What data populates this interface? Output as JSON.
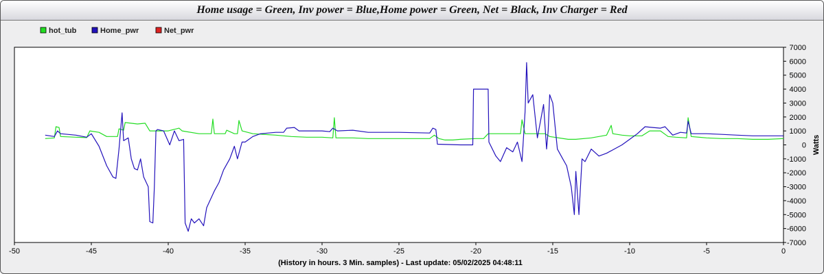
{
  "title": "Home usage = Green, Inv power = Blue,Home power = Green, Net = Black, Inv Charger = Red",
  "chart_data": {
    "type": "line",
    "title": "Home usage = Green, Inv power = Blue,Home power = Green, Net = Black, Inv Charger = Red",
    "xlabel": "(History in hours. 3 Min. samples) - Last update: 05/02/2025 04:48:11",
    "ylabel": "Watts",
    "xlim": [
      -50,
      0
    ],
    "ylim": [
      -7000,
      7000
    ],
    "x_ticks": [
      "-50",
      "-45",
      "-40",
      "-35",
      "-30",
      "-25",
      "-20",
      "-15",
      "-10",
      "-5",
      "0"
    ],
    "y_ticks": [
      "7000",
      "6000",
      "5000",
      "4000",
      "3000",
      "2000",
      "1000",
      "0",
      "-1000",
      "-2000",
      "-3000",
      "-4000",
      "-5000",
      "-6000",
      "-7000"
    ],
    "grid": false,
    "legend_position": "top-left",
    "series": [
      {
        "name": "hot_tub",
        "color": "#22dd22",
        "points": [
          [
            -48,
            450
          ],
          [
            -47.4,
            500
          ],
          [
            -47.3,
            1300
          ],
          [
            -47.1,
            1250
          ],
          [
            -47,
            600
          ],
          [
            -46,
            550
          ],
          [
            -45.3,
            520
          ],
          [
            -45.1,
            1000
          ],
          [
            -44.5,
            900
          ],
          [
            -44,
            600
          ],
          [
            -43.3,
            600
          ],
          [
            -43.2,
            1150
          ],
          [
            -42.9,
            1050
          ],
          [
            -42.8,
            1600
          ],
          [
            -42,
            1500
          ],
          [
            -41.5,
            1550
          ],
          [
            -41.2,
            1000
          ],
          [
            -40,
            1000
          ],
          [
            -39.3,
            1200
          ],
          [
            -39.1,
            1000
          ],
          [
            -38,
            800
          ],
          [
            -37.2,
            800
          ],
          [
            -37.1,
            1850
          ],
          [
            -37,
            800
          ],
          [
            -36.3,
            800
          ],
          [
            -36.2,
            1050
          ],
          [
            -35.7,
            800
          ],
          [
            -35.5,
            800
          ],
          [
            -35.4,
            1750
          ],
          [
            -35.2,
            1000
          ],
          [
            -34.5,
            800
          ],
          [
            -33,
            700
          ],
          [
            -32,
            600
          ],
          [
            -31,
            550
          ],
          [
            -30,
            550
          ],
          [
            -29.3,
            500
          ],
          [
            -29.2,
            1950
          ],
          [
            -29.1,
            500
          ],
          [
            -28,
            500
          ],
          [
            -27,
            450
          ],
          [
            -25,
            450
          ],
          [
            -23,
            450
          ],
          [
            -22.7,
            700
          ],
          [
            -22.4,
            450
          ],
          [
            -22,
            350
          ],
          [
            -21.5,
            350
          ],
          [
            -21,
            400
          ],
          [
            -20,
            450
          ],
          [
            -19.5,
            450
          ],
          [
            -19.2,
            800
          ],
          [
            -18,
            800
          ],
          [
            -17.1,
            800
          ],
          [
            -17,
            1800
          ],
          [
            -16.8,
            800
          ],
          [
            -15.5,
            800
          ],
          [
            -15.2,
            600
          ],
          [
            -14,
            400
          ],
          [
            -13.5,
            400
          ],
          [
            -12.5,
            500
          ],
          [
            -11.5,
            700
          ],
          [
            -11.2,
            1400
          ],
          [
            -11.1,
            800
          ],
          [
            -10.5,
            700
          ],
          [
            -10,
            650
          ],
          [
            -9.2,
            650
          ],
          [
            -8.7,
            1000
          ],
          [
            -8,
            1000
          ],
          [
            -7.5,
            600
          ],
          [
            -7,
            550
          ],
          [
            -6.3,
            500
          ],
          [
            -6.2,
            1950
          ],
          [
            -6,
            600
          ],
          [
            -5,
            500
          ],
          [
            -4,
            450
          ],
          [
            -3,
            450
          ],
          [
            -2,
            400
          ],
          [
            -1,
            400
          ],
          [
            0,
            450
          ]
        ]
      },
      {
        "name": "Home_pwr",
        "color": "#2211bb",
        "points": [
          [
            -48,
            700
          ],
          [
            -47.4,
            600
          ],
          [
            -47.2,
            1000
          ],
          [
            -47,
            800
          ],
          [
            -46,
            700
          ],
          [
            -45.3,
            550
          ],
          [
            -45,
            800
          ],
          [
            -44.5,
            -100
          ],
          [
            -44,
            -1500
          ],
          [
            -43.6,
            -2300
          ],
          [
            -43.4,
            -2400
          ],
          [
            -43.2,
            -300
          ],
          [
            -43,
            2300
          ],
          [
            -42.9,
            300
          ],
          [
            -42.6,
            500
          ],
          [
            -42.4,
            -1000
          ],
          [
            -42.2,
            -1700
          ],
          [
            -42,
            -1800
          ],
          [
            -41.8,
            -1000
          ],
          [
            -41.6,
            -2300
          ],
          [
            -41.3,
            -3000
          ],
          [
            -41.2,
            -5500
          ],
          [
            -41,
            -5600
          ],
          [
            -40.9,
            -3000
          ],
          [
            -40.8,
            1000
          ],
          [
            -40.7,
            1100
          ],
          [
            -40.3,
            1000
          ],
          [
            -39.9,
            0
          ],
          [
            -39.6,
            1000
          ],
          [
            -39.3,
            300
          ],
          [
            -39,
            400
          ],
          [
            -38.9,
            -5600
          ],
          [
            -38.7,
            -6200
          ],
          [
            -38.5,
            -5300
          ],
          [
            -38.3,
            -5600
          ],
          [
            -38,
            -5300
          ],
          [
            -37.7,
            -5800
          ],
          [
            -37.5,
            -4500
          ],
          [
            -37,
            -3300
          ],
          [
            -36.7,
            -2700
          ],
          [
            -36.4,
            -1800
          ],
          [
            -36,
            -1000
          ],
          [
            -35.7,
            -100
          ],
          [
            -35.5,
            -1000
          ],
          [
            -35.2,
            200
          ],
          [
            -35,
            200
          ],
          [
            -34.5,
            600
          ],
          [
            -34,
            800
          ],
          [
            -33,
            900
          ],
          [
            -32.5,
            900
          ],
          [
            -32.3,
            1200
          ],
          [
            -31.8,
            1250
          ],
          [
            -31.5,
            1000
          ],
          [
            -30,
            1000
          ],
          [
            -29.5,
            950
          ],
          [
            -29.3,
            1200
          ],
          [
            -29,
            1000
          ],
          [
            -28,
            1050
          ],
          [
            -27,
            900
          ],
          [
            -25,
            900
          ],
          [
            -23,
            850
          ],
          [
            -22.8,
            1200
          ],
          [
            -22.6,
            1100
          ],
          [
            -22.5,
            50
          ],
          [
            -21,
            0
          ],
          [
            -20.2,
            0
          ],
          [
            -20.15,
            4000
          ],
          [
            -19.2,
            4000
          ],
          [
            -19.15,
            200
          ],
          [
            -18.7,
            -800
          ],
          [
            -18.4,
            -1200
          ],
          [
            -18,
            -200
          ],
          [
            -17.6,
            -500
          ],
          [
            -17.3,
            200
          ],
          [
            -17,
            -1200
          ],
          [
            -16.8,
            2400
          ],
          [
            -16.7,
            5900
          ],
          [
            -16.6,
            3000
          ],
          [
            -16.3,
            3600
          ],
          [
            -16,
            500
          ],
          [
            -15.6,
            2900
          ],
          [
            -15.4,
            -300
          ],
          [
            -15.3,
            1000
          ],
          [
            -15.2,
            3600
          ],
          [
            -15,
            3000
          ],
          [
            -14.7,
            -300
          ],
          [
            -14.4,
            -900
          ],
          [
            -14.1,
            -1500
          ],
          [
            -13.8,
            -3000
          ],
          [
            -13.6,
            -5000
          ],
          [
            -13.5,
            -1900
          ],
          [
            -13.3,
            -5000
          ],
          [
            -13.1,
            -1000
          ],
          [
            -12.9,
            -1200
          ],
          [
            -12.5,
            -300
          ],
          [
            -12,
            -800
          ],
          [
            -11.5,
            -600
          ],
          [
            -11,
            -300
          ],
          [
            -10.5,
            0
          ],
          [
            -10,
            400
          ],
          [
            -9.5,
            800
          ],
          [
            -9,
            1300
          ],
          [
            -8.5,
            1250
          ],
          [
            -8,
            1200
          ],
          [
            -7.7,
            1300
          ],
          [
            -7.2,
            700
          ],
          [
            -6.7,
            900
          ],
          [
            -6.3,
            850
          ],
          [
            -6.2,
            1700
          ],
          [
            -6,
            800
          ],
          [
            -5,
            800
          ],
          [
            -4,
            750
          ],
          [
            -3,
            700
          ],
          [
            -2,
            650
          ],
          [
            -1,
            650
          ],
          [
            0,
            650
          ]
        ]
      },
      {
        "name": "Net_pwr",
        "color": "#dd2222",
        "points": []
      }
    ]
  }
}
